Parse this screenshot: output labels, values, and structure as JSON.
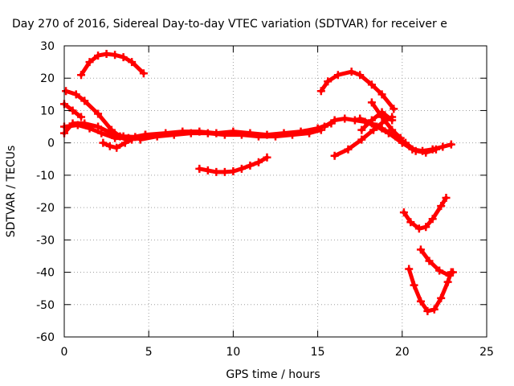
{
  "chart_data": {
    "type": "scatter",
    "title": "Day 270 of 2016, Sidereal Day-to-day VTEC variation (SDTVAR) for receiver e",
    "xlabel": "GPS time / hours",
    "ylabel": "SDTVAR / TECUs",
    "xlim": [
      0,
      25
    ],
    "ylim": [
      -60,
      30
    ],
    "xticks": [
      0,
      5,
      10,
      15,
      20,
      25
    ],
    "yticks": [
      -60,
      -50,
      -40,
      -30,
      -20,
      -10,
      0,
      10,
      20,
      30
    ],
    "xtick_labels": [
      "0",
      "5",
      "10",
      "15",
      "20",
      "25"
    ],
    "ytick_labels": [
      "-60",
      "-50",
      "-40",
      "-30",
      "-20",
      "-10",
      "0",
      "10",
      "20",
      "30"
    ],
    "grid": true,
    "marker": "plus",
    "color": "#ff0000",
    "series": [
      {
        "points": [
          [
            1.0,
            21
          ],
          [
            1.5,
            25
          ],
          [
            2.0,
            27
          ],
          [
            2.5,
            27.5
          ],
          [
            3.0,
            27.2
          ],
          [
            3.5,
            26.5
          ],
          [
            4.0,
            25
          ],
          [
            4.7,
            21.5
          ]
        ]
      },
      {
        "points": [
          [
            0.1,
            16
          ],
          [
            0.7,
            15
          ],
          [
            1.2,
            13
          ],
          [
            2.0,
            9
          ],
          [
            2.8,
            4
          ],
          [
            3.3,
            2
          ],
          [
            3.7,
            1
          ],
          [
            4.5,
            1.5
          ]
        ]
      },
      {
        "points": [
          [
            0.0,
            12
          ],
          [
            0.5,
            10
          ],
          [
            1.0,
            8
          ]
        ]
      },
      {
        "points": [
          [
            0.0,
            5
          ],
          [
            0.8,
            5.5
          ],
          [
            1.5,
            4.5
          ],
          [
            2.2,
            3
          ],
          [
            3.0,
            1.5
          ],
          [
            3.8,
            1.5
          ],
          [
            4.8,
            2.5
          ]
        ]
      },
      {
        "points": [
          [
            0.0,
            3
          ],
          [
            0.5,
            6
          ],
          [
            1.2,
            6
          ],
          [
            2.0,
            5
          ],
          [
            2.8,
            3
          ],
          [
            3.5,
            2
          ],
          [
            4.2,
            1.8
          ]
        ]
      },
      {
        "points": [
          [
            2.3,
            0
          ],
          [
            2.7,
            -1
          ],
          [
            3.1,
            -1.5
          ],
          [
            3.6,
            0
          ],
          [
            4.0,
            1
          ]
        ]
      },
      {
        "points": [
          [
            4.5,
            1
          ],
          [
            5.5,
            2
          ],
          [
            6.5,
            2.5
          ],
          [
            7.5,
            3
          ],
          [
            8.5,
            3
          ],
          [
            9.5,
            2.5
          ],
          [
            10.5,
            2.5
          ],
          [
            11.5,
            2
          ],
          [
            12.5,
            2
          ],
          [
            13.5,
            2.5
          ],
          [
            14.5,
            3
          ],
          [
            15.2,
            4
          ]
        ]
      },
      {
        "points": [
          [
            4.8,
            2.5
          ],
          [
            6.0,
            3
          ],
          [
            7.0,
            3.5
          ],
          [
            8.0,
            3.5
          ],
          [
            9.0,
            3
          ],
          [
            10.0,
            3.5
          ],
          [
            11.0,
            3
          ],
          [
            12.0,
            2.5
          ],
          [
            13.0,
            3
          ],
          [
            14.0,
            3.5
          ],
          [
            15.0,
            4.5
          ],
          [
            15.8,
            6
          ]
        ]
      },
      {
        "points": [
          [
            8.0,
            -8
          ],
          [
            8.5,
            -8.5
          ],
          [
            9.0,
            -9
          ],
          [
            9.5,
            -9
          ],
          [
            10.0,
            -8.8
          ],
          [
            10.5,
            -8
          ],
          [
            11.0,
            -7
          ],
          [
            11.5,
            -6
          ],
          [
            12.0,
            -4.5
          ]
        ]
      },
      {
        "points": [
          [
            15.2,
            16
          ],
          [
            15.6,
            19
          ],
          [
            16.2,
            21
          ],
          [
            17.0,
            22
          ],
          [
            17.5,
            21
          ],
          [
            18.2,
            18
          ],
          [
            18.8,
            15
          ],
          [
            19.5,
            10.5
          ]
        ]
      },
      {
        "points": [
          [
            15.4,
            5
          ],
          [
            16.0,
            7
          ],
          [
            16.6,
            7.5
          ],
          [
            17.2,
            7
          ],
          [
            17.8,
            6.5
          ],
          [
            18.5,
            5
          ],
          [
            19.2,
            3
          ],
          [
            20.0,
            0
          ],
          [
            20.6,
            -2
          ],
          [
            21.2,
            -2.5
          ],
          [
            21.8,
            -2
          ],
          [
            22.4,
            -1.2
          ],
          [
            22.9,
            -0.5
          ]
        ]
      },
      {
        "points": [
          [
            16.0,
            -4
          ],
          [
            16.8,
            -2
          ],
          [
            17.6,
            1
          ],
          [
            18.3,
            4
          ],
          [
            19.0,
            7
          ],
          [
            19.4,
            8
          ]
        ]
      },
      {
        "points": [
          [
            17.5,
            7.5
          ],
          [
            18.2,
            6
          ],
          [
            18.8,
            4.5
          ],
          [
            19.6,
            2
          ],
          [
            20.2,
            0
          ],
          [
            20.8,
            -2.5
          ],
          [
            21.4,
            -3
          ],
          [
            22.0,
            -2
          ]
        ]
      },
      {
        "points": [
          [
            18.2,
            12.5
          ],
          [
            18.8,
            8
          ],
          [
            19.4,
            4
          ],
          [
            19.9,
            1.5
          ]
        ]
      },
      {
        "points": [
          [
            17.6,
            4
          ],
          [
            18.2,
            7
          ],
          [
            18.8,
            9.5
          ],
          [
            19.4,
            7
          ]
        ]
      },
      {
        "points": [
          [
            20.1,
            -21.5
          ],
          [
            20.5,
            -24.5
          ],
          [
            21.0,
            -26.5
          ],
          [
            21.4,
            -26
          ],
          [
            21.8,
            -23.5
          ],
          [
            22.3,
            -19.5
          ],
          [
            22.6,
            -17
          ]
        ]
      },
      {
        "points": [
          [
            20.4,
            -39
          ],
          [
            20.7,
            -44
          ],
          [
            21.1,
            -49
          ],
          [
            21.5,
            -52
          ],
          [
            21.9,
            -51.5
          ],
          [
            22.3,
            -48
          ],
          [
            22.7,
            -43
          ],
          [
            22.9,
            -40
          ]
        ]
      },
      {
        "points": [
          [
            21.1,
            -33
          ],
          [
            21.6,
            -36.5
          ],
          [
            22.2,
            -39.5
          ],
          [
            22.8,
            -41
          ],
          [
            23.0,
            -40
          ]
        ]
      }
    ]
  }
}
